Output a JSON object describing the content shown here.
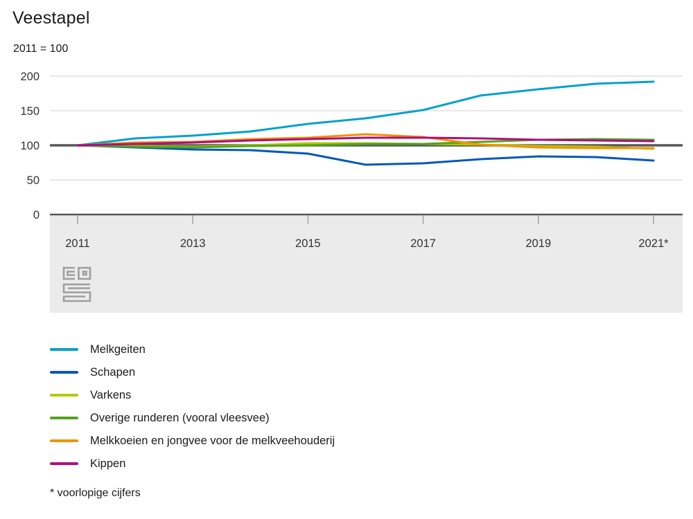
{
  "title": "Veestapel",
  "subtitle": "2011 = 100",
  "footnote": "* voorlopige cijfers",
  "logo_name": "cbs-logo",
  "colors": {
    "grid": "#d9d9d9",
    "axis_dark": "#58585a",
    "reference_line": "#58585a",
    "axis_band": "#ebebeb",
    "tick": "#a6a6a6",
    "label_text": "#333333"
  },
  "chart_data": {
    "type": "line",
    "title": "Veestapel",
    "subtitle": "2011 = 100",
    "x": [
      2011,
      2012,
      2013,
      2014,
      2015,
      2016,
      2017,
      2018,
      2019,
      2020,
      2021
    ],
    "x_tick_years": [
      2011,
      2013,
      2015,
      2017,
      2019,
      2021
    ],
    "x_tick_labels": [
      "2011",
      "2013",
      "2015",
      "2017",
      "2019",
      "2021*"
    ],
    "y_ticks": [
      200,
      150,
      100,
      50,
      0
    ],
    "y_tick_labels": [
      "200",
      "150",
      "100",
      "50",
      "0"
    ],
    "ylim": [
      0,
      200
    ],
    "reference_value": 100,
    "grid": true,
    "legend_position": "bottom",
    "series": [
      {
        "name": "Melkgeiten",
        "color": "#00a1cd",
        "values": [
          100,
          110,
          114,
          120,
          131,
          139,
          151,
          172,
          181,
          189,
          192
        ]
      },
      {
        "name": "Schapen",
        "color": "#0058b8",
        "values": [
          100,
          97,
          94,
          93,
          88,
          72,
          74,
          80,
          84,
          83,
          78
        ]
      },
      {
        "name": "Varkens",
        "color": "#afcb05",
        "values": [
          100,
          99,
          98,
          100,
          103,
          103,
          102,
          101,
          99,
          98,
          95
        ]
      },
      {
        "name": "Overige runderen (vooral vleesvee)",
        "color": "#53a31d",
        "values": [
          100,
          98,
          97,
          99,
          100,
          102,
          102,
          105,
          108,
          109,
          108
        ]
      },
      {
        "name": "Melkkoeien en jongvee voor de melkveehouderij",
        "color": "#f39200",
        "values": [
          100,
          104,
          105,
          109,
          111,
          116,
          112,
          101,
          97,
          96,
          96
        ]
      },
      {
        "name": "Kippen",
        "color": "#af0e80",
        "values": [
          100,
          102,
          104,
          107,
          109,
          111,
          111,
          110,
          108,
          107,
          106
        ]
      }
    ]
  }
}
